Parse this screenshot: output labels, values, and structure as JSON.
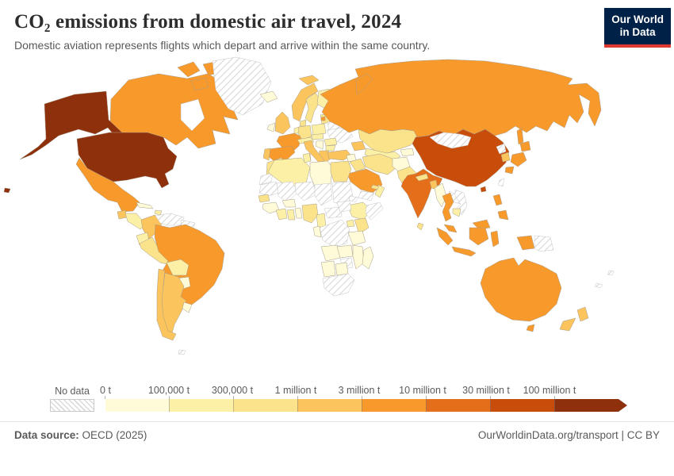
{
  "header": {
    "title": "CO₂ emissions from domestic air travel, 2024",
    "subtitle": "Domestic aviation represents flights which depart and arrive within the same country.",
    "logo": {
      "line1": "Our World",
      "line2": "in Data"
    }
  },
  "chart_data": {
    "type": "choropleth",
    "title": "CO₂ emissions from domestic air travel, 2024",
    "year": 2024,
    "unit": "t",
    "no_data_label": "No data",
    "bin_labels": [
      "0 t",
      "100,000 t",
      "300,000 t",
      "1 million t",
      "3 million t",
      "10 million t",
      "30 million t",
      "100 million t"
    ],
    "bin_thresholds_t": [
      0,
      100000,
      300000,
      1000000,
      3000000,
      10000000,
      30000000,
      100000000
    ],
    "bin_colors": [
      "#FFFBD9",
      "#FCF0A6",
      "#FBE38C",
      "#FBC45D",
      "#F8992C",
      "#E46E1A",
      "#C84D0B",
      "#8F300C"
    ],
    "no_data_fill": "hatched",
    "countries": {
      "united-states": 7,
      "canada": 4,
      "greenland": "nodata",
      "mexico": 4,
      "guatemala": 3,
      "central-america": 1,
      "cuba": 0,
      "hispaniola": 1,
      "colombia": 3,
      "venezuela": "nodata",
      "guyanas": "nodata",
      "ecuador": 1,
      "peru": 2,
      "brazil": 4,
      "bolivia": 1,
      "paraguay": 0,
      "chile": 3,
      "argentina": 3,
      "uruguay": 0,
      "falkland-islands": "nodata",
      "iceland": 0,
      "norway": 3,
      "svalbard": 3,
      "sweden": 2,
      "finland": 1,
      "denmark": 2,
      "united-kingdom": 3,
      "ireland": 0,
      "france": 4,
      "spain": 4,
      "portugal": 3,
      "benelux": 1,
      "germany": 2,
      "alps": 1,
      "czechia-slovakia": 1,
      "poland": 1,
      "baltic-states": 2,
      "latvia": 4,
      "belarus": "nodata",
      "ukraine": "nodata",
      "romania": 1,
      "balkans": 0,
      "bulgaria": 1,
      "greece": 3,
      "italy": 3,
      "sicily": 3,
      "sardinia": 3,
      "turkey": 3,
      "caucasus": 3,
      "russia": 4,
      "novaya-zemlya": 4,
      "kazakhstan": 2,
      "uzbekistan-turkmenistan": 1,
      "kyrgyzstan-tajikistan": 0,
      "syria": 0,
      "iraq": 2,
      "israel-jordan": 1,
      "saudi-arabia": 4,
      "yemen": "nodata",
      "oman": 1,
      "uae": 2,
      "iran": 2,
      "afghanistan": 0,
      "pakistan": 2,
      "india": 5,
      "nepal": 2,
      "bangladesh": 3,
      "sri-lanka": 2,
      "china": 6,
      "hainan-china": 6,
      "mongolia": "nodata",
      "north-korea": "nodata",
      "south-korea": 3,
      "japan": 4,
      "taiwan": "nodata",
      "myanmar": 0,
      "thailand": 4,
      "laos": "nodata",
      "vietnam": "nodata",
      "cambodia": 1,
      "malaysia": 4,
      "indonesia": 4,
      "philippines": 4,
      "papua-new-guinea": "nodata",
      "morocco": 2,
      "western-sahara": "nodata",
      "algeria": 1,
      "tunisia": 1,
      "libya": 0,
      "egypt": 2,
      "mauritania": "nodata",
      "mali": "nodata",
      "niger": "nodata",
      "chad": "nodata",
      "sudan": "nodata",
      "eritrea": "nodata",
      "ethiopia": 1,
      "somalia": "nodata",
      "senegal": 2,
      "guinea": 0,
      "ivory-coast": 1,
      "ghana": 1,
      "togo-benin": 0,
      "burkina-faso": 0,
      "nigeria": 2,
      "cameroon": 1,
      "central-african-republic": "nodata",
      "south-sudan": "nodata",
      "dr-congo": "nodata",
      "gabon-congo": 0,
      "uganda": 1,
      "kenya": 2,
      "tanzania": 0,
      "angola": 0,
      "zambia": 0,
      "mozambique": 0,
      "zimbabwe": "nodata",
      "namibia": 0,
      "botswana": 0,
      "south-africa": "nodata",
      "madagascar": 0,
      "australia": 4,
      "tasmania-australia": 4,
      "new-zealand": 3,
      "fiji": "nodata",
      "new-caledonia": "nodata"
    }
  },
  "footer": {
    "source_label": "Data source:",
    "source_value": "OECD (2025)",
    "right_text": "OurWorldinData.org/transport | CC BY"
  },
  "colors": {
    "navy": "#002147",
    "logo_red": "#E03931",
    "hatch_line": "#dadada"
  }
}
